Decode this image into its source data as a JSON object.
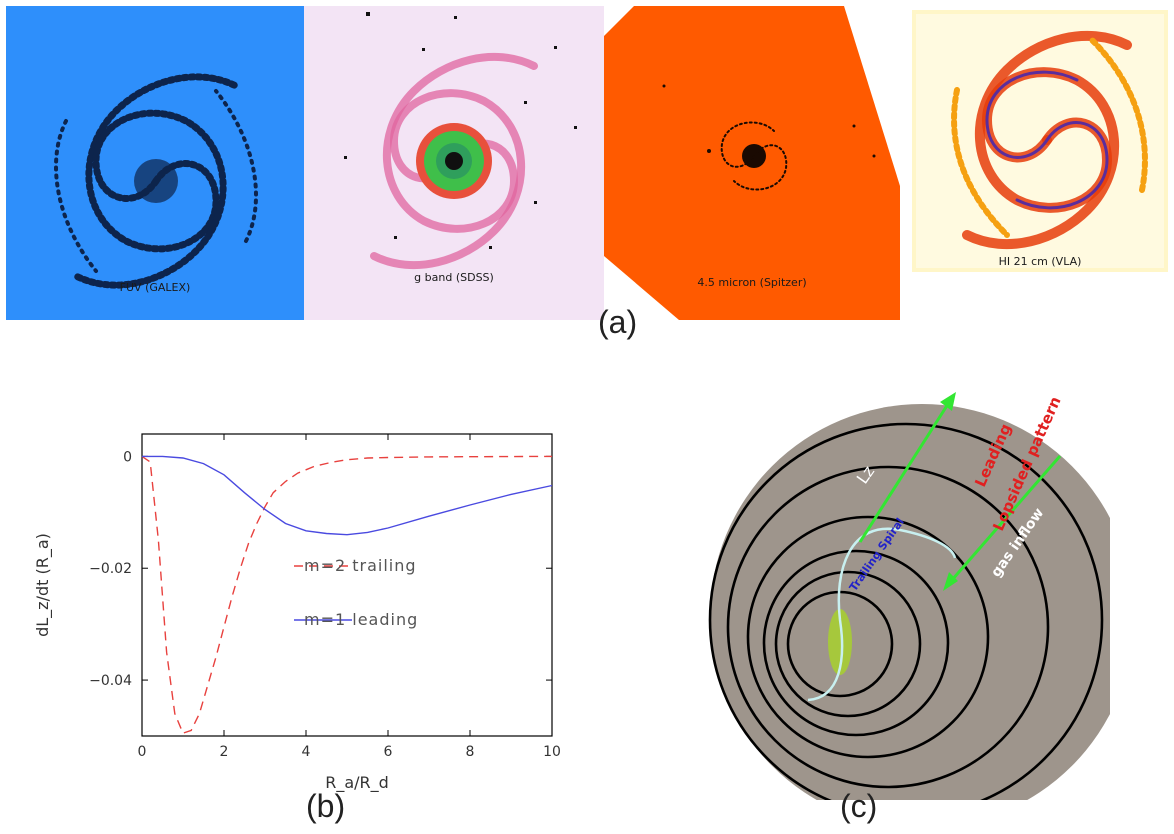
{
  "figure": {
    "panel_labels": [
      "(a)",
      "(b)",
      "(c)"
    ],
    "images": [
      {
        "caption": "FUV (GALEX)",
        "background": "#2e8ffb",
        "ink": "#08122e"
      },
      {
        "caption": "g band (SDSS)",
        "background": "#f3e4f5",
        "ink": "#e0669f"
      },
      {
        "caption": "4.5 micron (Spitzer)",
        "background": "#ff5a00",
        "ink": "#1a0a02"
      },
      {
        "caption": "HI 21 cm (VLA)",
        "background": "#fffdf0",
        "ink": "#e63c0a"
      }
    ]
  },
  "chart_data": {
    "type": "line",
    "xlabel": "R_a/R_d",
    "ylabel": "dL_z/dt (R_a)",
    "xlim": [
      0,
      10
    ],
    "ylim": [
      -0.05,
      0.004
    ],
    "x_ticks": [
      "0",
      "2",
      "4",
      "6",
      "8",
      "10"
    ],
    "y_ticks": [
      "0",
      "-0.02",
      "-0.04"
    ],
    "series": [
      {
        "name": "m=2 trailing",
        "color": "#e8413e",
        "style": "dashed",
        "x": [
          0,
          0.2,
          0.4,
          0.6,
          0.8,
          1.0,
          1.2,
          1.4,
          1.6,
          1.8,
          2.0,
          2.2,
          2.4,
          2.6,
          2.8,
          3.0,
          3.2,
          3.5,
          3.8,
          4.2,
          4.6,
          5.0,
          5.5,
          6.0,
          7.0,
          8.0,
          10.0
        ],
        "y": [
          0,
          -0.001,
          -0.015,
          -0.035,
          -0.046,
          -0.0495,
          -0.049,
          -0.046,
          -0.041,
          -0.036,
          -0.0305,
          -0.025,
          -0.02,
          -0.0155,
          -0.012,
          -0.009,
          -0.0065,
          -0.0045,
          -0.003,
          -0.0018,
          -0.0011,
          -0.0006,
          -0.0003,
          -0.0002,
          -0.0001,
          -5e-05,
          0
        ]
      },
      {
        "name": "m=1 leading",
        "color": "#4a4ae0",
        "style": "solid",
        "x": [
          0,
          0.5,
          1.0,
          1.5,
          2.0,
          2.5,
          3.0,
          3.5,
          4.0,
          4.5,
          5.0,
          5.5,
          6.0,
          7.0,
          8.0,
          9.0,
          10.0
        ],
        "y": [
          0,
          0,
          -0.0003,
          -0.0013,
          -0.0033,
          -0.0065,
          -0.0095,
          -0.012,
          -0.0133,
          -0.0138,
          -0.014,
          -0.0136,
          -0.0128,
          -0.0107,
          -0.0087,
          -0.0068,
          -0.0052
        ]
      }
    ]
  },
  "diagram": {
    "lz_label": "Lz",
    "leading_label": "Leading",
    "lopsided_label": "Lopsided pattern",
    "trailing_label": "Trailing Spiral",
    "inflow_label": "gas inflow",
    "disk_color": "#9e958c",
    "arrow_color": "#33e633",
    "bar_color": "#a6c83c",
    "spiral_color": "#c8f0f0",
    "leading_color": "#e02020",
    "trailing_color": "#2323c8"
  }
}
